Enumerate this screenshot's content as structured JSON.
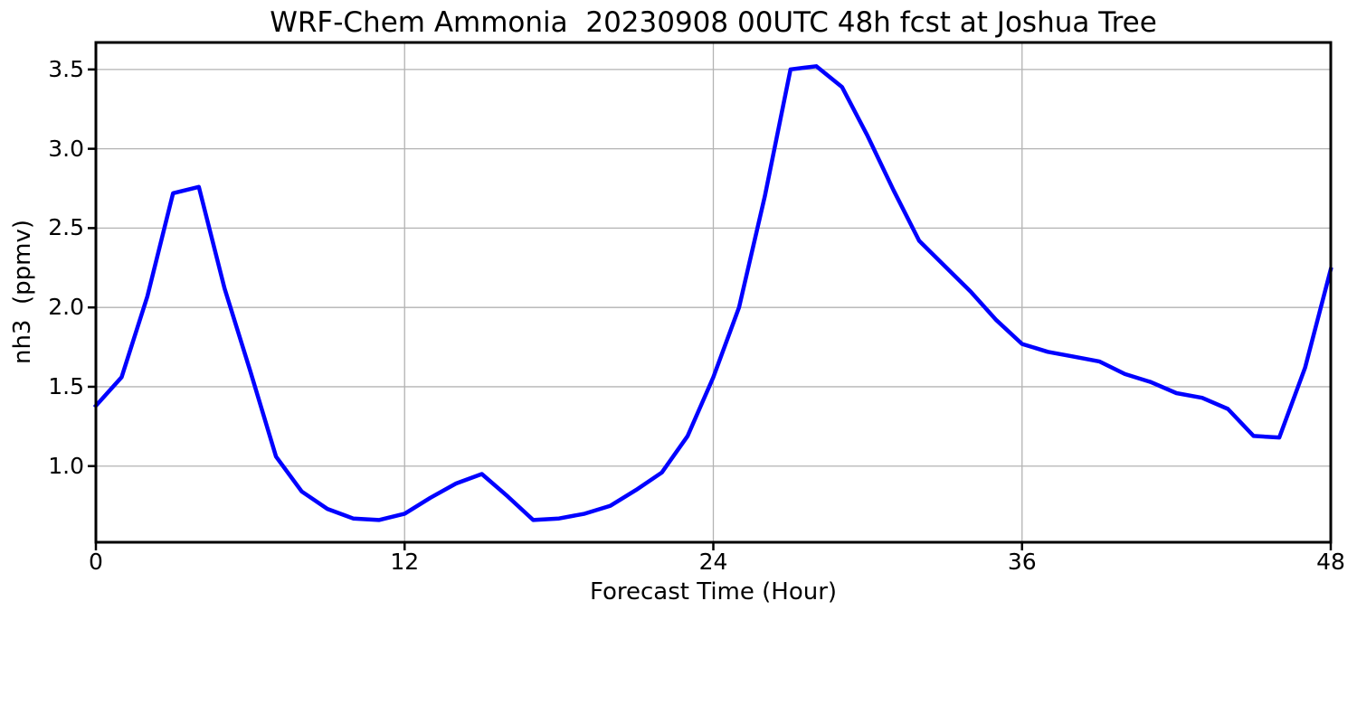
{
  "chart_data": {
    "type": "line",
    "title": "WRF-Chem Ammonia  20230908 00UTC 48h fcst at Joshua Tree",
    "xlabel": "Forecast Time (Hour)",
    "ylabel": "nh3  (ppmv)",
    "xlim": [
      0,
      48
    ],
    "ylim": [
      0.52,
      3.67
    ],
    "grid": true,
    "grid_color": "#b3b3b3",
    "spine_color": "#000000",
    "background_color": "#ffffff",
    "legend": null,
    "xticks": {
      "values": [
        0,
        12,
        24,
        36,
        48
      ],
      "labels": [
        "0",
        "12",
        "24",
        "36",
        "48"
      ]
    },
    "yticks": {
      "values": [
        1.0,
        1.5,
        2.0,
        2.5,
        3.0,
        3.5
      ],
      "labels": [
        "1.0",
        "1.5",
        "2.0",
        "2.5",
        "3.0",
        "3.5"
      ]
    },
    "x": [
      0,
      1,
      2,
      3,
      4,
      5,
      6,
      7,
      8,
      9,
      10,
      11,
      12,
      13,
      14,
      15,
      16,
      17,
      18,
      19,
      20,
      21,
      22,
      23,
      24,
      25,
      26,
      27,
      28,
      29,
      30,
      31,
      32,
      33,
      34,
      35,
      36,
      37,
      38,
      39,
      40,
      41,
      42,
      43,
      44,
      45,
      46,
      47,
      48
    ],
    "series": [
      {
        "name": "nh3",
        "color": "#0000ff",
        "line_width": 4.5,
        "values": [
          1.38,
          1.56,
          2.07,
          2.72,
          2.76,
          2.12,
          1.6,
          1.06,
          0.84,
          0.73,
          0.67,
          0.66,
          0.7,
          0.8,
          0.89,
          0.95,
          0.81,
          0.66,
          0.67,
          0.7,
          0.75,
          0.85,
          0.96,
          1.19,
          1.56,
          2.0,
          2.7,
          3.5,
          3.52,
          3.39,
          3.08,
          2.74,
          2.42,
          2.26,
          2.1,
          1.92,
          1.77,
          1.72,
          1.69,
          1.66,
          1.58,
          1.53,
          1.46,
          1.43,
          1.36,
          1.19,
          1.18,
          1.62,
          2.24
        ]
      }
    ]
  }
}
